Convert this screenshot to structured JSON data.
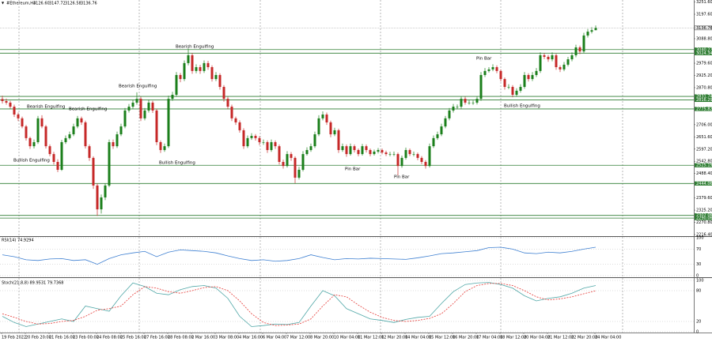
{
  "chart_data": {
    "type": "candlestick",
    "symbol": "#Ethereum,H4",
    "header_ohlc": [
      "3126.60",
      "3147.72",
      "3126.58",
      "3136.76"
    ],
    "bull_color": "#1b7f1b",
    "bear_color": "#c62828",
    "level_color": "#2e7d32",
    "ylim": [
      2213,
      3261
    ],
    "yticks": [
      {
        "value": 3251.6,
        "label": "3251.60"
      },
      {
        "value": 3197.6,
        "label": "3197.60"
      },
      {
        "value": 3088.8,
        "label": "3088.80"
      },
      {
        "value": 2979.6,
        "label": "2979.60"
      },
      {
        "value": 2925.2,
        "label": "2925.20"
      },
      {
        "value": 2870.8,
        "label": "2870.80"
      },
      {
        "value": 2706,
        "label": "2706.00"
      },
      {
        "value": 2651.6,
        "label": "2651.60"
      },
      {
        "value": 2597.2,
        "label": "2597.20"
      },
      {
        "value": 2542.8,
        "label": "2542.80"
      },
      {
        "value": 2488.4,
        "label": "2488.40"
      },
      {
        "value": 2379.6,
        "label": "2379.60"
      },
      {
        "value": 2325.2,
        "label": "2325.20"
      },
      {
        "value": 2270.8,
        "label": "2270.80"
      },
      {
        "value": 2216.4,
        "label": "2216.40"
      }
    ],
    "levels": [
      3040.27,
      3024.34,
      2831.74,
      2816.29,
      2775.82,
      2525.19,
      2444.06,
      2302.06,
      2290.06
    ],
    "annotations": [
      "Bullish Engulfing",
      "Bearish Engulfing",
      "Bearish Engulfing",
      "Bearish Engulfing",
      "Bullish Engulfing",
      "Bearish Engulfing",
      "Pin Bar",
      "Pin Bar",
      "Pin Bar",
      "Bullish Engulfing"
    ],
    "xtick_labels": [
      "19 Feb 2022",
      "20 Feb 20:00",
      "21 Feb 16:00",
      "23 Feb 00:00",
      "24 Feb 08:00",
      "25 Feb 16:00",
      "27 Feb 16:00",
      "28 Feb 08:00",
      "2 Mar 16:00",
      "3 Mar 08:00",
      "4 Mar 16:00",
      "6 Mar 04:00",
      "7 Mar 12:00",
      "8 Mar 20:00",
      "10 Mar 04:00",
      "11 Mar 12:00",
      "12 Mar 20:00",
      "14 Mar 04:00",
      "15 Mar 12:00",
      "16 Mar 20:00",
      "17 Mar 04:00",
      "18 Mar 12:00",
      "20 Mar 04:00",
      "21 Mar 12:00",
      "22 Mar 20:00",
      "24 Mar 04:00"
    ],
    "ohlc": [
      [
        2820,
        2835,
        2800,
        2811
      ],
      [
        2811,
        2822,
        2795,
        2804
      ],
      [
        2804,
        2812,
        2778,
        2786
      ],
      [
        2786,
        2795,
        2740,
        2751
      ],
      [
        2751,
        2760,
        2722,
        2734
      ],
      [
        2734,
        2742,
        2690,
        2698
      ],
      [
        2698,
        2705,
        2635,
        2646
      ],
      [
        2646,
        2652,
        2598,
        2610
      ],
      [
        2610,
        2640,
        2600,
        2628
      ],
      [
        2628,
        2745,
        2620,
        2734
      ],
      [
        2734,
        2748,
        2690,
        2698
      ],
      [
        2698,
        2705,
        2600,
        2610
      ],
      [
        2610,
        2618,
        2565,
        2575
      ],
      [
        2575,
        2585,
        2528,
        2540
      ],
      [
        2540,
        2552,
        2495,
        2505
      ],
      [
        2505,
        2638,
        2500,
        2628
      ],
      [
        2628,
        2658,
        2620,
        2646
      ],
      [
        2646,
        2675,
        2640,
        2663
      ],
      [
        2663,
        2710,
        2655,
        2698
      ],
      [
        2698,
        2745,
        2690,
        2734
      ],
      [
        2734,
        2742,
        2705,
        2716
      ],
      [
        2716,
        2724,
        2600,
        2610
      ],
      [
        2610,
        2618,
        2545,
        2558
      ],
      [
        2558,
        2565,
        2420,
        2435
      ],
      [
        2435,
        2445,
        2300,
        2329
      ],
      [
        2329,
        2395,
        2310,
        2382
      ],
      [
        2382,
        2445,
        2370,
        2435
      ],
      [
        2435,
        2640,
        2428,
        2628
      ],
      [
        2628,
        2640,
        2598,
        2610
      ],
      [
        2610,
        2675,
        2602,
        2663
      ],
      [
        2663,
        2710,
        2655,
        2698
      ],
      [
        2698,
        2780,
        2690,
        2769
      ],
      [
        2769,
        2798,
        2760,
        2786
      ],
      [
        2786,
        2815,
        2778,
        2804
      ],
      [
        2804,
        2850,
        2795,
        2821
      ],
      [
        2821,
        2830,
        2722,
        2734
      ],
      [
        2734,
        2780,
        2725,
        2769
      ],
      [
        2769,
        2818,
        2760,
        2804
      ],
      [
        2804,
        2812,
        2758,
        2769
      ],
      [
        2769,
        2776,
        2615,
        2628
      ],
      [
        2628,
        2636,
        2580,
        2593
      ],
      [
        2593,
        2622,
        2585,
        2610
      ],
      [
        2610,
        2835,
        2602,
        2821
      ],
      [
        2821,
        2852,
        2812,
        2839
      ],
      [
        2839,
        2940,
        2830,
        2927
      ],
      [
        2927,
        2936,
        2895,
        2909
      ],
      [
        2909,
        2992,
        2900,
        2980
      ],
      [
        2980,
        3045,
        2970,
        3015
      ],
      [
        3015,
        3025,
        2932,
        2945
      ],
      [
        2945,
        2975,
        2935,
        2962
      ],
      [
        2962,
        2972,
        2932,
        2945
      ],
      [
        2945,
        2992,
        2936,
        2980
      ],
      [
        2980,
        2990,
        2950,
        2962
      ],
      [
        2962,
        2970,
        2898,
        2909
      ],
      [
        2909,
        2940,
        2900,
        2927
      ],
      [
        2927,
        2935,
        2862,
        2874
      ],
      [
        2874,
        2882,
        2808,
        2821
      ],
      [
        2821,
        2830,
        2775,
        2786
      ],
      [
        2786,
        2795,
        2722,
        2734
      ],
      [
        2734,
        2742,
        2705,
        2716
      ],
      [
        2716,
        2725,
        2670,
        2681
      ],
      [
        2681,
        2690,
        2598,
        2610
      ],
      [
        2610,
        2658,
        2602,
        2646
      ],
      [
        2646,
        2668,
        2638,
        2656
      ],
      [
        2656,
        2664,
        2635,
        2646
      ],
      [
        2646,
        2655,
        2615,
        2628
      ],
      [
        2628,
        2640,
        2616,
        2628
      ],
      [
        2628,
        2636,
        2580,
        2593
      ],
      [
        2593,
        2640,
        2585,
        2628
      ],
      [
        2628,
        2636,
        2598,
        2610
      ],
      [
        2610,
        2618,
        2528,
        2540
      ],
      [
        2540,
        2550,
        2510,
        2522
      ],
      [
        2522,
        2588,
        2515,
        2575
      ],
      [
        2575,
        2584,
        2545,
        2558
      ],
      [
        2558,
        2565,
        2445,
        2470
      ],
      [
        2470,
        2518,
        2462,
        2505
      ],
      [
        2505,
        2588,
        2498,
        2575
      ],
      [
        2575,
        2605,
        2568,
        2593
      ],
      [
        2593,
        2622,
        2585,
        2610
      ],
      [
        2610,
        2675,
        2602,
        2663
      ],
      [
        2663,
        2748,
        2655,
        2734
      ],
      [
        2734,
        2765,
        2725,
        2751
      ],
      [
        2751,
        2760,
        2705,
        2716
      ],
      [
        2716,
        2724,
        2650,
        2663
      ],
      [
        2663,
        2692,
        2655,
        2681
      ],
      [
        2681,
        2688,
        2580,
        2593
      ],
      [
        2593,
        2622,
        2585,
        2610
      ],
      [
        2610,
        2618,
        2563,
        2575
      ],
      [
        2575,
        2622,
        2568,
        2610
      ],
      [
        2610,
        2618,
        2582,
        2593
      ],
      [
        2593,
        2600,
        2565,
        2575
      ],
      [
        2575,
        2620,
        2568,
        2610
      ],
      [
        2610,
        2618,
        2582,
        2593
      ],
      [
        2593,
        2600,
        2565,
        2575
      ],
      [
        2575,
        2595,
        2568,
        2586
      ],
      [
        2586,
        2602,
        2578,
        2593
      ],
      [
        2593,
        2600,
        2574,
        2582
      ],
      [
        2582,
        2590,
        2566,
        2575
      ],
      [
        2575,
        2585,
        2565,
        2575
      ],
      [
        2575,
        2586,
        2566,
        2575
      ],
      [
        2575,
        2582,
        2480,
        2522
      ],
      [
        2522,
        2568,
        2514,
        2558
      ],
      [
        2558,
        2604,
        2550,
        2593
      ],
      [
        2593,
        2600,
        2566,
        2575
      ],
      [
        2575,
        2586,
        2565,
        2575
      ],
      [
        2575,
        2582,
        2548,
        2558
      ],
      [
        2558,
        2566,
        2530,
        2540
      ],
      [
        2540,
        2548,
        2510,
        2522
      ],
      [
        2522,
        2622,
        2515,
        2610
      ],
      [
        2610,
        2658,
        2602,
        2646
      ],
      [
        2646,
        2675,
        2638,
        2663
      ],
      [
        2663,
        2710,
        2655,
        2698
      ],
      [
        2698,
        2745,
        2690,
        2734
      ],
      [
        2734,
        2780,
        2725,
        2769
      ],
      [
        2769,
        2798,
        2760,
        2786
      ],
      [
        2786,
        2796,
        2775,
        2786
      ],
      [
        2786,
        2832,
        2778,
        2821
      ],
      [
        2821,
        2830,
        2795,
        2804
      ],
      [
        2804,
        2815,
        2795,
        2804
      ],
      [
        2804,
        2814,
        2794,
        2804
      ],
      [
        2804,
        2832,
        2796,
        2821
      ],
      [
        2821,
        2940,
        2812,
        2927
      ],
      [
        2927,
        2958,
        2918,
        2945
      ],
      [
        2945,
        2962,
        2938,
        2952
      ],
      [
        2952,
        2975,
        2944,
        2962
      ],
      [
        2962,
        2970,
        2935,
        2945
      ],
      [
        2945,
        2952,
        2898,
        2909
      ],
      [
        2909,
        2916,
        2862,
        2874
      ],
      [
        2874,
        2886,
        2864,
        2874
      ],
      [
        2874,
        2882,
        2828,
        2839
      ],
      [
        2839,
        2868,
        2830,
        2857
      ],
      [
        2857,
        2886,
        2848,
        2874
      ],
      [
        2874,
        2940,
        2866,
        2927
      ],
      [
        2927,
        2935,
        2898,
        2909
      ],
      [
        2909,
        2940,
        2900,
        2927
      ],
      [
        2927,
        2958,
        2918,
        2945
      ],
      [
        2945,
        3028,
        2936,
        3015
      ],
      [
        3015,
        3024,
        2998,
        3008
      ],
      [
        3008,
        3016,
        2986,
        2997
      ],
      [
        2997,
        3028,
        2988,
        3015
      ],
      [
        3015,
        3022,
        2950,
        2962
      ],
      [
        2962,
        2970,
        2940,
        2952
      ],
      [
        2952,
        2985,
        2944,
        2973
      ],
      [
        2973,
        3008,
        2965,
        2997
      ],
      [
        2997,
        3028,
        2988,
        3015
      ],
      [
        3015,
        3062,
        3006,
        3050
      ],
      [
        3050,
        3058,
        3020,
        3032
      ],
      [
        3032,
        3115,
        3024,
        3103
      ],
      [
        3103,
        3132,
        3094,
        3120
      ],
      [
        3120,
        3140,
        3112,
        3126.6
      ],
      [
        3126.6,
        3147.72,
        3126.58,
        3136.76
      ]
    ],
    "indicators": [
      {
        "title": "RSI(14) 74.9294",
        "ylim": [
          0,
          100
        ],
        "yticks": [
          100,
          70,
          30,
          0
        ],
        "color": "#3d7fd1",
        "values": [
          55,
          50,
          42,
          40,
          44,
          45,
          40,
          42,
          30,
          45,
          55,
          60,
          64,
          50,
          62,
          68,
          66,
          64,
          60,
          52,
          45,
          40,
          42,
          38,
          40,
          45,
          55,
          48,
          42,
          45,
          44,
          46,
          45,
          44,
          43,
          47,
          52,
          58,
          60,
          63,
          66,
          74,
          75,
          70,
          60,
          58,
          62,
          60,
          64,
          70,
          74.9294
        ]
      },
      {
        "title": "Stoch(21,8,8) 89.9531 79.7368",
        "ylim": [
          0,
          100
        ],
        "yticks": [
          100,
          80,
          20,
          0
        ],
        "series": [
          {
            "color": "#4fa7a7",
            "dashed": false,
            "values": [
              30,
              18,
              10,
              15,
              20,
              25,
              20,
              50,
              45,
              40,
              70,
              95,
              88,
              75,
              72,
              82,
              88,
              90,
              85,
              65,
              30,
              10,
              12,
              15,
              14,
              18,
              50,
              80,
              70,
              45,
              35,
              25,
              22,
              18,
              24,
              28,
              30,
              55,
              78,
              92,
              95,
              96,
              92,
              85,
              70,
              60,
              65,
              68,
              75,
              85,
              89.9531
            ]
          },
          {
            "color": "#e53935",
            "dashed": true,
            "values": [
              35,
              28,
              20,
              15,
              16,
              20,
              22,
              30,
              42,
              45,
              50,
              72,
              88,
              85,
              78,
              75,
              80,
              86,
              88,
              80,
              60,
              35,
              18,
              12,
              13,
              15,
              25,
              50,
              72,
              68,
              52,
              38,
              28,
              22,
              20,
              22,
              26,
              35,
              55,
              78,
              90,
              94,
              94,
              90,
              80,
              68,
              62,
              64,
              68,
              74,
              79.7368
            ]
          }
        ]
      }
    ]
  }
}
